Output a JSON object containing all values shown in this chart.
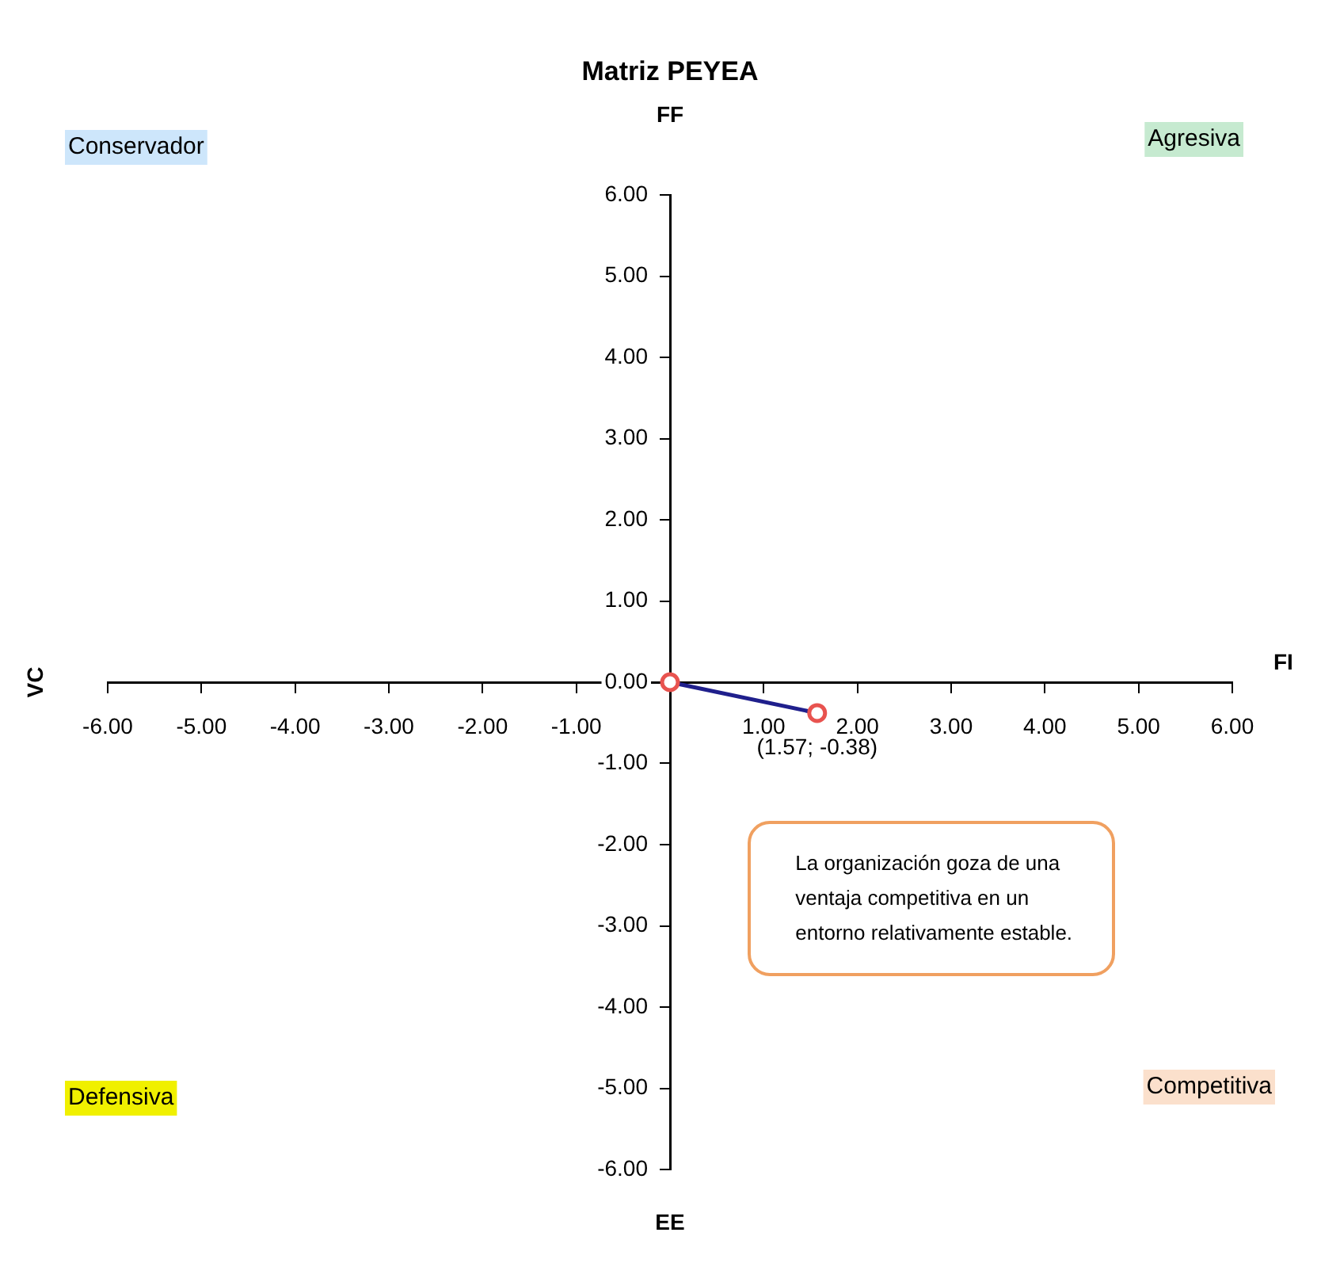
{
  "chart_data": {
    "type": "line",
    "title": "Matriz PEYEA",
    "xlabel": "FI",
    "ylabel": "VC",
    "x": [
      0,
      1.57
    ],
    "series": [
      {
        "color": "#1f1f8c",
        "values": [
          0,
          -0.38
        ]
      }
    ],
    "marker": "circle",
    "legend": false,
    "grid": false,
    "xlim": [
      -6,
      6
    ],
    "ylim": [
      -6,
      6
    ],
    "xticks": [
      {
        "value": -6,
        "label": "-6.00"
      },
      {
        "value": -5,
        "label": "-5.00"
      },
      {
        "value": -4,
        "label": "-4.00"
      },
      {
        "value": -3,
        "label": "-3.00"
      },
      {
        "value": -2,
        "label": "-2.00"
      },
      {
        "value": -1,
        "label": "-1.00"
      },
      {
        "value": 0,
        "label": null
      },
      {
        "value": 1,
        "label": "1.00"
      },
      {
        "value": 2,
        "label": "2.00"
      },
      {
        "value": 3,
        "label": "3.00"
      },
      {
        "value": 4,
        "label": "4.00"
      },
      {
        "value": 5,
        "label": "5.00"
      },
      {
        "value": 6,
        "label": "6.00"
      }
    ],
    "yticks": [
      {
        "value": -6,
        "label": "-6.00"
      },
      {
        "value": -5,
        "label": "-5.00"
      },
      {
        "value": -4,
        "label": "-4.00"
      },
      {
        "value": -3,
        "label": "-3.00"
      },
      {
        "value": -2,
        "label": "-2.00"
      },
      {
        "value": -1,
        "label": "-1.00"
      },
      {
        "value": 0,
        "label": "0.00"
      },
      {
        "value": 1,
        "label": "1.00"
      },
      {
        "value": 2,
        "label": "2.00"
      },
      {
        "value": 3,
        "label": "3.00"
      },
      {
        "value": 4,
        "label": "4.00"
      },
      {
        "value": 5,
        "label": "5.00"
      },
      {
        "value": 6,
        "label": "6.00"
      }
    ],
    "annotations": [
      "FF",
      "EE",
      "Conservador",
      "Agresiva",
      "Defensiva",
      "Competitiva",
      "La organización goza de una ventaja competitiva en un entorno relativamente estable.",
      {
        "text": "(1.57; -0.38)",
        "x": 1.57,
        "y": -0.38
      }
    ]
  }
}
